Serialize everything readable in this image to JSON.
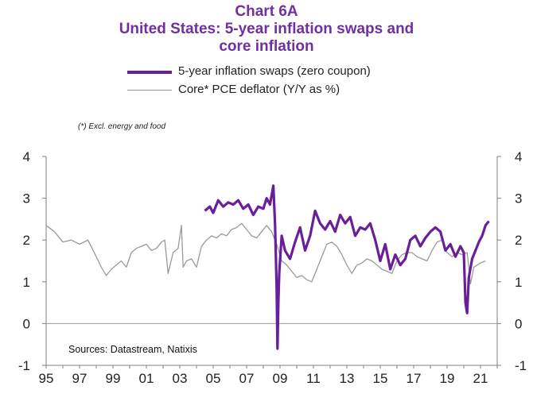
{
  "chart_data": {
    "type": "line",
    "chart_label": "Chart 6A",
    "title": "United States: 5-year inflation swaps and core inflation",
    "note": "(*) Excl. energy and food",
    "source": "Sources:  Datastream,  Natixis",
    "xlim": [
      1995,
      2022
    ],
    "ylim": [
      -1,
      4
    ],
    "ylim_right": [
      -1,
      4
    ],
    "x_tick_labels": [
      "95",
      "97",
      "99",
      "01",
      "03",
      "05",
      "07",
      "09",
      "11",
      "13",
      "15",
      "17",
      "19",
      "21"
    ],
    "y_tick_labels": [
      "4",
      "3",
      "2",
      "1",
      "0",
      "-1"
    ],
    "y_tick_values": [
      4,
      3,
      2,
      1,
      0,
      -1
    ],
    "series": [
      {
        "name": "5-year inflation swaps (zero coupon)",
        "color": "#6a1f9a",
        "x": [
          2004.5,
          2004.8,
          2005.0,
          2005.3,
          2005.6,
          2005.9,
          2006.2,
          2006.5,
          2006.8,
          2007.1,
          2007.4,
          2007.7,
          2008.0,
          2008.2,
          2008.4,
          2008.6,
          2008.7,
          2008.75,
          2008.8,
          2008.85,
          2008.9,
          2008.95,
          2009.0,
          2009.1,
          2009.3,
          2009.6,
          2009.9,
          2010.2,
          2010.5,
          2010.8,
          2011.1,
          2011.4,
          2011.7,
          2012.0,
          2012.3,
          2012.6,
          2012.9,
          2013.2,
          2013.5,
          2013.8,
          2014.1,
          2014.4,
          2014.7,
          2015.0,
          2015.3,
          2015.6,
          2015.9,
          2016.2,
          2016.5,
          2016.8,
          2017.1,
          2017.4,
          2017.7,
          2018.0,
          2018.3,
          2018.6,
          2018.9,
          2019.2,
          2019.5,
          2019.8,
          2020.0,
          2020.1,
          2020.2,
          2020.3,
          2020.5,
          2020.7,
          2020.9,
          2021.1,
          2021.3,
          2021.5
        ],
        "values": [
          2.7,
          2.8,
          2.65,
          2.95,
          2.8,
          2.9,
          2.85,
          2.95,
          2.75,
          2.85,
          2.6,
          2.8,
          2.75,
          3.0,
          2.85,
          3.3,
          2.4,
          1.6,
          0.8,
          -0.6,
          0.5,
          1.2,
          1.5,
          2.1,
          1.75,
          1.55,
          1.95,
          2.3,
          1.75,
          2.1,
          2.7,
          2.4,
          2.25,
          2.45,
          2.2,
          2.6,
          2.4,
          2.55,
          2.1,
          2.3,
          2.25,
          2.4,
          2.0,
          1.5,
          1.9,
          1.3,
          1.65,
          1.4,
          1.55,
          2.0,
          2.1,
          1.85,
          2.05,
          2.2,
          2.3,
          2.2,
          1.75,
          1.9,
          1.6,
          1.85,
          1.7,
          0.5,
          0.25,
          1.1,
          1.55,
          1.75,
          1.95,
          2.1,
          2.35,
          2.45
        ]
      },
      {
        "name": "Core* PCE deflator (Y/Y as %)",
        "color": "#9a9a9a",
        "x": [
          1995.0,
          1995.5,
          1996.0,
          1996.5,
          1997.0,
          1997.5,
          1998.0,
          1998.3,
          1998.6,
          1998.9,
          1999.2,
          1999.5,
          1999.8,
          2000.1,
          2000.4,
          2000.7,
          2001.0,
          2001.3,
          2001.6,
          2001.9,
          2002.1,
          2002.3,
          2002.6,
          2002.9,
          2003.1,
          2003.2,
          2003.4,
          2003.7,
          2004.0,
          2004.3,
          2004.6,
          2004.9,
          2005.2,
          2005.5,
          2005.8,
          2006.1,
          2006.4,
          2006.7,
          2007.0,
          2007.3,
          2007.6,
          2007.9,
          2008.2,
          2008.5,
          2008.8,
          2009.1,
          2009.4,
          2009.7,
          2010.0,
          2010.3,
          2010.6,
          2010.9,
          2011.2,
          2011.5,
          2011.8,
          2012.1,
          2012.4,
          2012.7,
          2013.0,
          2013.3,
          2013.6,
          2013.9,
          2014.2,
          2014.5,
          2014.8,
          2015.1,
          2015.4,
          2015.7,
          2016.0,
          2016.3,
          2016.6,
          2016.9,
          2017.2,
          2017.5,
          2017.8,
          2018.1,
          2018.4,
          2018.7,
          2019.0,
          2019.3,
          2019.6,
          2019.9,
          2020.2,
          2020.4,
          2020.6,
          2020.8,
          2021.0,
          2021.3
        ],
        "values": [
          2.35,
          2.2,
          1.95,
          2.0,
          1.9,
          2.0,
          1.6,
          1.35,
          1.15,
          1.3,
          1.4,
          1.5,
          1.35,
          1.7,
          1.8,
          1.85,
          1.9,
          1.75,
          1.8,
          1.95,
          2.0,
          1.2,
          1.7,
          1.8,
          2.35,
          1.35,
          1.5,
          1.55,
          1.35,
          1.85,
          2.0,
          2.1,
          2.05,
          2.15,
          2.1,
          2.25,
          2.3,
          2.4,
          2.25,
          2.1,
          2.05,
          2.2,
          2.35,
          2.2,
          1.9,
          1.5,
          1.4,
          1.25,
          1.1,
          1.15,
          1.05,
          1.0,
          1.3,
          1.6,
          1.9,
          1.95,
          1.85,
          1.65,
          1.4,
          1.2,
          1.4,
          1.45,
          1.55,
          1.5,
          1.4,
          1.3,
          1.25,
          1.2,
          1.5,
          1.65,
          1.7,
          1.7,
          1.6,
          1.55,
          1.5,
          1.75,
          1.95,
          2.0,
          1.7,
          1.6,
          1.7,
          1.65,
          1.7,
          0.95,
          1.35,
          1.4,
          1.45,
          1.5
        ]
      }
    ]
  }
}
